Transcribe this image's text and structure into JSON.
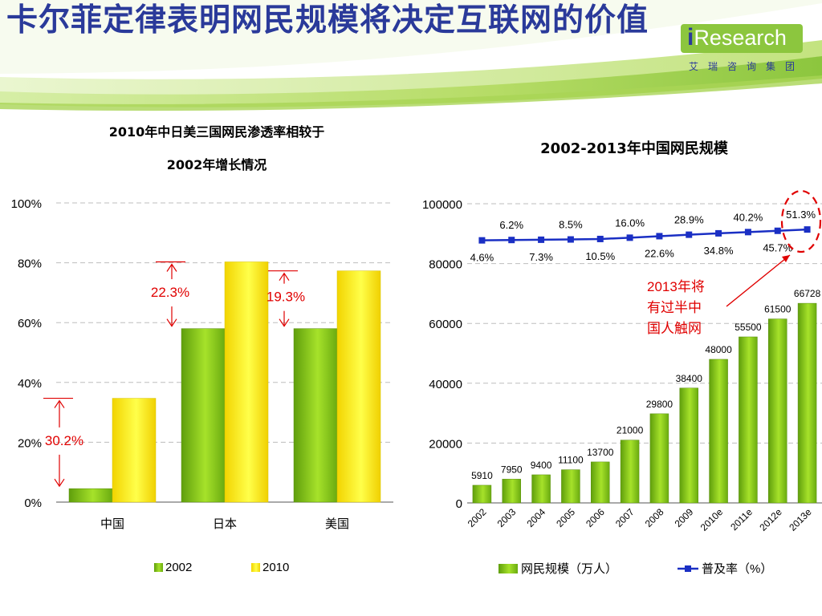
{
  "slide": {
    "title": "卡尔菲定律表明网民规模将决定互联网的价值",
    "logo_i": "i",
    "logo_text": "Research",
    "logo_subtitle": "艾瑞咨询集团"
  },
  "colors": {
    "title": "#2a3a9a",
    "bar_2002": "#7cc516",
    "bar_2010": "#ffe800",
    "line": "#1a2fc4",
    "annotation": "#e00000"
  },
  "chart_data": [
    {
      "type": "bar",
      "title_line1": "2010年中日美三国网民渗透率相较于",
      "title_line2": "2002年增长情况",
      "categories": [
        "中国",
        "日本",
        "美国"
      ],
      "series": [
        {
          "name": "2002",
          "values": [
            4.5,
            58,
            58
          ]
        },
        {
          "name": "2010",
          "values": [
            34.7,
            80.3,
            77.3
          ]
        }
      ],
      "ylim": [
        0,
        100
      ],
      "yticks": [
        0,
        20,
        40,
        60,
        80,
        100
      ],
      "ytick_labels": [
        "0%",
        "20%",
        "40%",
        "60%",
        "80%",
        "100%"
      ],
      "grid": true,
      "legend": "bottom",
      "growth_labels": [
        "30.2%",
        "22.3%",
        "19.3%"
      ]
    },
    {
      "type": "bar+line",
      "title": "2002-2013年中国网民规模",
      "categories": [
        "2002",
        "2003",
        "2004",
        "2005",
        "2006",
        "2007",
        "2008",
        "2009",
        "2010e",
        "2011e",
        "2012e",
        "2013e"
      ],
      "bar_series": {
        "name": "网民规模（万人）",
        "values": [
          5910,
          7950,
          9400,
          11100,
          13700,
          21000,
          29800,
          38400,
          48000,
          55500,
          61500,
          66728
        ]
      },
      "line_series": {
        "name": "普及率（%）",
        "values": [
          4.6,
          6.2,
          7.3,
          8.5,
          10.5,
          16.0,
          22.6,
          28.9,
          34.8,
          40.2,
          45.7,
          51.3
        ]
      },
      "line_labels": [
        "4.6%",
        "6.2%",
        "7.3%",
        "8.5%",
        "10.5%",
        "16.0%",
        "22.6%",
        "28.9%",
        "34.8%",
        "40.2%",
        "45.7%",
        "51.3%"
      ],
      "ylim": [
        0,
        100000
      ],
      "yticks": [
        0,
        20000,
        40000,
        60000,
        80000,
        100000
      ],
      "grid": true,
      "legend": "bottom",
      "annotation": {
        "lines": [
          "2013年将",
          "有过半中",
          "国人触网"
        ]
      }
    }
  ]
}
